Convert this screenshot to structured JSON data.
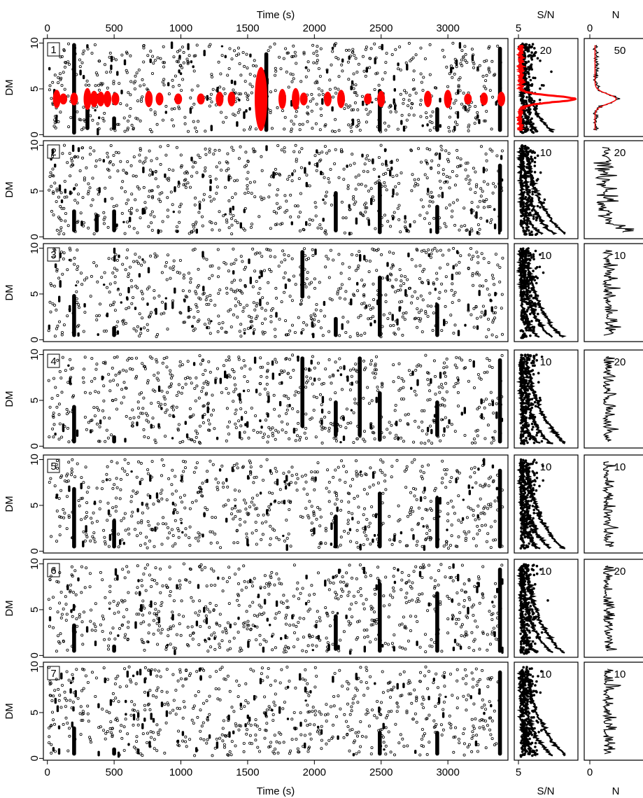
{
  "chart_data": {
    "type": "scatter",
    "description_free": true,
    "top_xlabel": "Time (s)",
    "bottom_xlabel": "Time (s)",
    "ylabel": "DM",
    "sn_label_top": "S/N",
    "sn_label_bottom": "S/N",
    "n_label_top": "N",
    "n_label_bottom": "N",
    "time_ticks": [
      "0",
      "500",
      "1000",
      "1500",
      "2000",
      "2500",
      "3000"
    ],
    "time_tick_values": [
      0,
      500,
      1000,
      1500,
      2000,
      2500,
      3000
    ],
    "xlim": [
      -30,
      3450
    ],
    "dm_ticks": [
      "0",
      "5",
      "10"
    ],
    "dm_tick_values": [
      0,
      5,
      10
    ],
    "ylim": [
      -0.2,
      10.5
    ],
    "sn_tick_label": "5",
    "sn_xlim": [
      4.5,
      9.5
    ],
    "n_tick_label": "0",
    "accent_color": "#ff0000",
    "point_color": "#000000",
    "panels": [
      {
        "label": "1",
        "sn_annot": "20",
        "n_annot": "50",
        "vertical_streaks": [
          {
            "t": 200,
            "dm": [
              0,
              10
            ]
          },
          {
            "t": 300,
            "dm": [
              0.5,
              3
            ]
          },
          {
            "t": 500,
            "dm": [
              0.5,
              2
            ]
          },
          {
            "t": 1640,
            "dm": [
              0.3,
              9
            ]
          },
          {
            "t": 2490,
            "dm": [
              0.3,
              5
            ]
          },
          {
            "t": 2920,
            "dm": [
              0.3,
              3
            ]
          },
          {
            "t": 3390,
            "dm": [
              0.3,
              9.6
            ]
          }
        ],
        "bursts": [
          {
            "t": 70,
            "dm": 3.9,
            "h": 2.0
          },
          {
            "t": 120,
            "dm": 3.9,
            "h": 1.2
          },
          {
            "t": 200,
            "dm": 3.9,
            "h": 1.4
          },
          {
            "t": 300,
            "dm": 3.9,
            "h": 2.4
          },
          {
            "t": 350,
            "dm": 3.9,
            "h": 1.8
          },
          {
            "t": 400,
            "dm": 3.9,
            "h": 1.6
          },
          {
            "t": 450,
            "dm": 3.9,
            "h": 1.8
          },
          {
            "t": 510,
            "dm": 3.9,
            "h": 1.4
          },
          {
            "t": 760,
            "dm": 3.9,
            "h": 1.8
          },
          {
            "t": 840,
            "dm": 3.9,
            "h": 1.4
          },
          {
            "t": 980,
            "dm": 3.9,
            "h": 1.2
          },
          {
            "t": 1150,
            "dm": 3.9,
            "h": 1.2
          },
          {
            "t": 1290,
            "dm": 3.9,
            "h": 1.6
          },
          {
            "t": 1380,
            "dm": 3.9,
            "h": 1.6
          },
          {
            "t": 1600,
            "dm": 3.9,
            "h": 7.0
          },
          {
            "t": 1760,
            "dm": 3.9,
            "h": 2.2
          },
          {
            "t": 1860,
            "dm": 3.9,
            "h": 2.4
          },
          {
            "t": 1920,
            "dm": 3.9,
            "h": 1.4
          },
          {
            "t": 2100,
            "dm": 3.9,
            "h": 1.6
          },
          {
            "t": 2200,
            "dm": 3.9,
            "h": 2.0
          },
          {
            "t": 2400,
            "dm": 3.9,
            "h": 1.2
          },
          {
            "t": 2500,
            "dm": 3.9,
            "h": 1.8
          },
          {
            "t": 2850,
            "dm": 3.9,
            "h": 1.8
          },
          {
            "t": 3000,
            "dm": 3.9,
            "h": 2.0
          },
          {
            "t": 3150,
            "dm": 3.9,
            "h": 1.2
          },
          {
            "t": 3270,
            "dm": 3.9,
            "h": 1.4
          },
          {
            "t": 3400,
            "dm": 3.9,
            "h": 1.6
          }
        ]
      },
      {
        "label": "2",
        "sn_annot": "10",
        "n_annot": "20",
        "vertical_streaks": [
          {
            "t": 200,
            "dm": [
              0.5,
              3
            ]
          },
          {
            "t": 370,
            "dm": [
              0.5,
              2.5
            ]
          },
          {
            "t": 500,
            "dm": [
              0.5,
              3
            ]
          },
          {
            "t": 2160,
            "dm": [
              0.5,
              5
            ]
          },
          {
            "t": 2490,
            "dm": [
              0.3,
              6
            ]
          },
          {
            "t": 2920,
            "dm": [
              0.3,
              3.5
            ]
          },
          {
            "t": 3390,
            "dm": [
              0.5,
              8
            ]
          }
        ],
        "bursts": []
      },
      {
        "label": "3",
        "sn_annot": "10",
        "n_annot": "10",
        "vertical_streaks": [
          {
            "t": 200,
            "dm": [
              0.3,
              5
            ]
          },
          {
            "t": 500,
            "dm": [
              0.3,
              1.5
            ]
          },
          {
            "t": 1910,
            "dm": [
              4.5,
              9.8
            ]
          },
          {
            "t": 2160,
            "dm": [
              0.3,
              2.5
            ]
          },
          {
            "t": 2490,
            "dm": [
              0.3,
              7
            ]
          },
          {
            "t": 2920,
            "dm": [
              0.3,
              4
            ]
          }
        ],
        "bursts": []
      },
      {
        "label": "4",
        "sn_annot": "10",
        "n_annot": "20",
        "vertical_streaks": [
          {
            "t": 200,
            "dm": [
              0.3,
              4.5
            ]
          },
          {
            "t": 500,
            "dm": [
              0.3,
              1.2
            ]
          },
          {
            "t": 1910,
            "dm": [
              2,
              9.8
            ]
          },
          {
            "t": 2160,
            "dm": [
              1,
              5
            ]
          },
          {
            "t": 2340,
            "dm": [
              1,
              9.8
            ]
          },
          {
            "t": 2490,
            "dm": [
              0.5,
              6
            ]
          },
          {
            "t": 2920,
            "dm": [
              1,
              5
            ]
          },
          {
            "t": 3390,
            "dm": [
              0.3,
              9.6
            ]
          }
        ],
        "bursts": []
      },
      {
        "label": "5",
        "sn_annot": "10",
        "n_annot": "10",
        "vertical_streaks": [
          {
            "t": 200,
            "dm": [
              0.3,
              7
            ]
          },
          {
            "t": 500,
            "dm": [
              0.3,
              3.5
            ]
          },
          {
            "t": 2160,
            "dm": [
              0.3,
              4
            ]
          },
          {
            "t": 2490,
            "dm": [
              0.3,
              6.5
            ]
          },
          {
            "t": 2920,
            "dm": [
              0.3,
              6
            ]
          },
          {
            "t": 3390,
            "dm": [
              0.3,
              9
            ]
          }
        ],
        "bursts": []
      },
      {
        "label": "6",
        "sn_annot": "10",
        "n_annot": "20",
        "vertical_streaks": [
          {
            "t": 200,
            "dm": [
              0.3,
              3.5
            ]
          },
          {
            "t": 500,
            "dm": [
              0.3,
              1.2
            ]
          },
          {
            "t": 2160,
            "dm": [
              0.5,
              4.5
            ]
          },
          {
            "t": 2490,
            "dm": [
              0.3,
              8
            ]
          },
          {
            "t": 2920,
            "dm": [
              0.3,
              7
            ]
          },
          {
            "t": 3390,
            "dm": [
              0.3,
              9.6
            ]
          }
        ],
        "bursts": []
      },
      {
        "label": "7",
        "sn_annot": "10",
        "n_annot": "10",
        "vertical_streaks": [
          {
            "t": 200,
            "dm": [
              0.3,
              3.5
            ]
          },
          {
            "t": 500,
            "dm": [
              0.3,
              1.2
            ]
          },
          {
            "t": 2490,
            "dm": [
              0.3,
              3
            ]
          },
          {
            "t": 2920,
            "dm": [
              0.3,
              3
            ]
          },
          {
            "t": 3390,
            "dm": [
              0.3,
              9.6
            ]
          }
        ],
        "bursts": []
      }
    ]
  }
}
